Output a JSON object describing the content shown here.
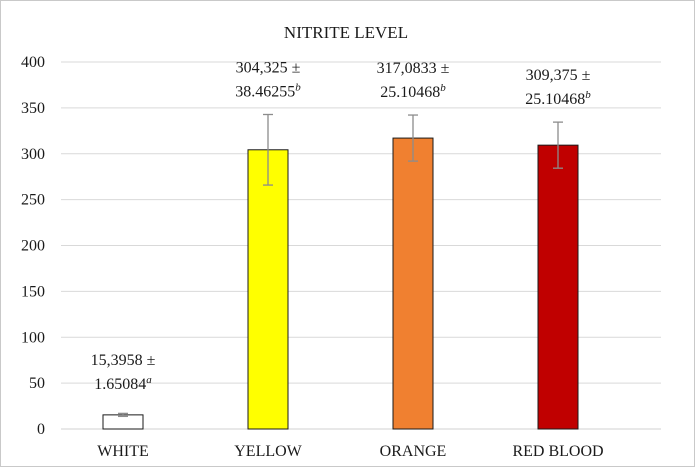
{
  "chart_data": {
    "type": "bar",
    "title": "NITRITE LEVEL",
    "categories": [
      "WHITE",
      "YELLOW",
      "ORANGE",
      "RED BLOOD"
    ],
    "values": [
      15.3958,
      304.325,
      317.0833,
      309.375
    ],
    "errors": [
      1.65084,
      38.46255,
      25.10468,
      25.10468
    ],
    "colors": [
      "#ffffff",
      "#ffff00",
      "#f08030",
      "#c00000"
    ],
    "data_labels": [
      {
        "line1": "15,3958 ±",
        "line2": "1.65084",
        "sup": "a"
      },
      {
        "line1": "304,325 ±",
        "line2": "38.46255",
        "sup": "b"
      },
      {
        "line1": "317,0833 ±",
        "line2": "25.10468",
        "sup": "b"
      },
      {
        "line1": "309,375 ±",
        "line2": "25.10468",
        "sup": "b"
      }
    ],
    "ylim": [
      0,
      400
    ],
    "yticks": [
      0,
      50,
      100,
      150,
      200,
      250,
      300,
      350,
      400
    ],
    "grid": true,
    "xlabel": "",
    "ylabel": ""
  }
}
